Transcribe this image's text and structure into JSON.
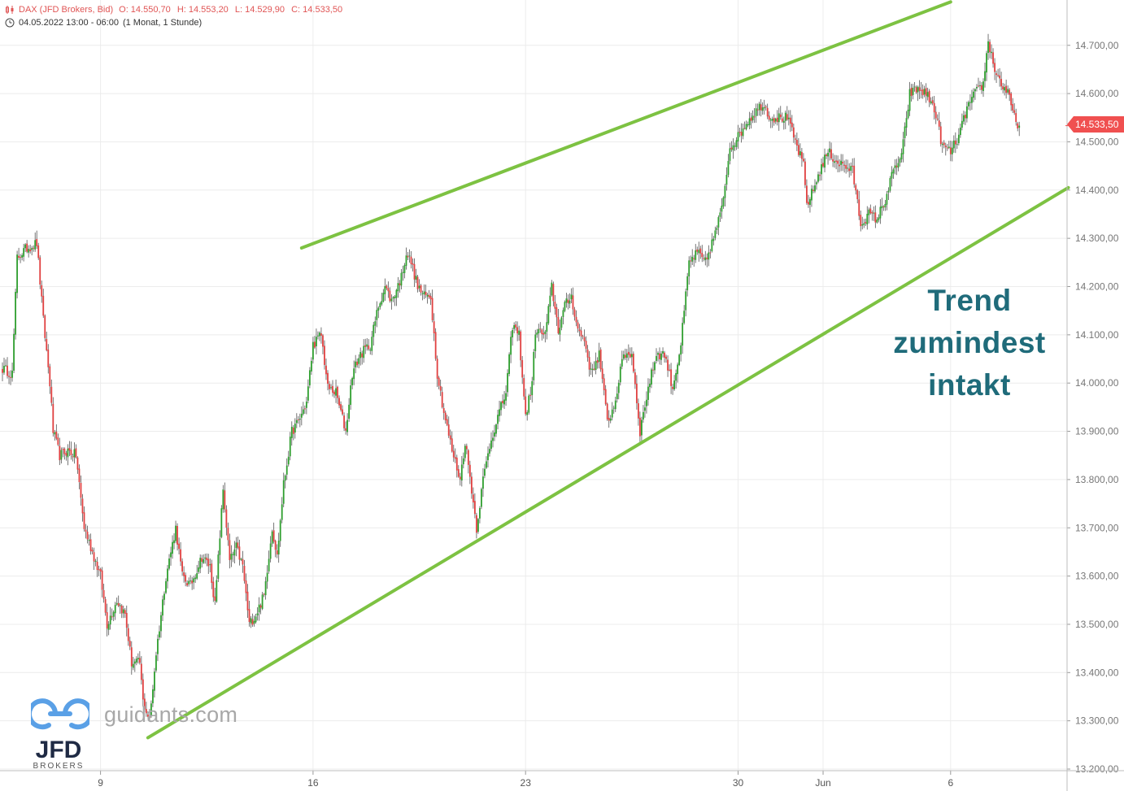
{
  "header": {
    "instrument": "DAX (JFD Brokers, Bid)",
    "open": "O: 14.550,70",
    "high": "H: 14.553,20",
    "low": "L: 14.529,90",
    "close": "C: 14.533,50",
    "range": "04.05.2022 13:00 - 06:00",
    "period": "(1 Monat, 1 Stunde)"
  },
  "annotation": {
    "line1": "Trend",
    "line2": "zumindest",
    "line3": "intakt"
  },
  "last_price_label": "14.533,50",
  "watermark": {
    "site": "guidants.com",
    "logo": "JFD",
    "logo_sub": "BROKERS"
  },
  "colors": {
    "up": "#2e9e2e",
    "down": "#e04040",
    "trend": "#7dc242",
    "annotation": "#1f6b7a",
    "badge": "#f05050"
  },
  "chart_data": {
    "type": "candlestick",
    "title": "DAX (JFD Brokers, Bid)",
    "ylim": [
      13180,
      14790
    ],
    "yticks": [
      13200,
      13300,
      13400,
      13500,
      13600,
      13700,
      13800,
      13900,
      14000,
      14100,
      14200,
      14300,
      14400,
      14500,
      14600,
      14700
    ],
    "ytick_labels": [
      "13.200,00",
      "13.300,00",
      "13.400,00",
      "13.500,00",
      "13.600,00",
      "13.700,00",
      "13.800,00",
      "13.900,00",
      "14.000,00",
      "14.100,00",
      "14.200,00",
      "14.300,00",
      "14.400,00",
      "14.500,00",
      "14.600,00",
      "14.700,00"
    ],
    "xticks": [
      {
        "label": "9",
        "index": 60
      },
      {
        "label": "16",
        "index": 190
      },
      {
        "label": "23",
        "index": 320
      },
      {
        "label": "30",
        "index": 450
      },
      {
        "label": "Jun",
        "index": 502
      },
      {
        "label": "6",
        "index": 580
      }
    ],
    "x_index_range": [
      -3,
      652
    ],
    "series_path": [
      [
        0,
        14030
      ],
      [
        6,
        14020
      ],
      [
        9,
        14260
      ],
      [
        15,
        14280
      ],
      [
        21,
        14290
      ],
      [
        25,
        14130
      ],
      [
        29,
        14000
      ],
      [
        31,
        13900
      ],
      [
        35,
        13850
      ],
      [
        40,
        13860
      ],
      [
        45,
        13850
      ],
      [
        50,
        13700
      ],
      [
        55,
        13650
      ],
      [
        60,
        13600
      ],
      [
        64,
        13500
      ],
      [
        70,
        13550
      ],
      [
        75,
        13520
      ],
      [
        79,
        13420
      ],
      [
        84,
        13420
      ],
      [
        86,
        13340
      ],
      [
        90,
        13300
      ],
      [
        94,
        13440
      ],
      [
        100,
        13600
      ],
      [
        106,
        13700
      ],
      [
        110,
        13600
      ],
      [
        115,
        13580
      ],
      [
        122,
        13640
      ],
      [
        127,
        13620
      ],
      [
        130,
        13540
      ],
      [
        135,
        13780
      ],
      [
        139,
        13630
      ],
      [
        143,
        13660
      ],
      [
        147,
        13620
      ],
      [
        151,
        13500
      ],
      [
        155,
        13520
      ],
      [
        160,
        13560
      ],
      [
        165,
        13700
      ],
      [
        168,
        13640
      ],
      [
        172,
        13790
      ],
      [
        177,
        13900
      ],
      [
        181,
        13920
      ],
      [
        186,
        13960
      ],
      [
        190,
        14080
      ],
      [
        195,
        14100
      ],
      [
        199,
        13990
      ],
      [
        204,
        13980
      ],
      [
        210,
        13900
      ],
      [
        214,
        14020
      ],
      [
        219,
        14060
      ],
      [
        225,
        14080
      ],
      [
        230,
        14160
      ],
      [
        234,
        14200
      ],
      [
        238,
        14170
      ],
      [
        244,
        14220
      ],
      [
        247,
        14270
      ],
      [
        250,
        14250
      ],
      [
        254,
        14200
      ],
      [
        258,
        14180
      ],
      [
        262,
        14180
      ],
      [
        266,
        14020
      ],
      [
        270,
        13940
      ],
      [
        275,
        13860
      ],
      [
        280,
        13800
      ],
      [
        283,
        13880
      ],
      [
        287,
        13780
      ],
      [
        290,
        13700
      ],
      [
        294,
        13800
      ],
      [
        298,
        13870
      ],
      [
        302,
        13920
      ],
      [
        308,
        13980
      ],
      [
        312,
        14120
      ],
      [
        316,
        14100
      ],
      [
        320,
        13930
      ],
      [
        324,
        14000
      ],
      [
        326,
        14110
      ],
      [
        332,
        14100
      ],
      [
        336,
        14200
      ],
      [
        340,
        14110
      ],
      [
        344,
        14160
      ],
      [
        348,
        14180
      ],
      [
        352,
        14110
      ],
      [
        356,
        14090
      ],
      [
        360,
        14020
      ],
      [
        365,
        14060
      ],
      [
        370,
        13920
      ],
      [
        374,
        13950
      ],
      [
        380,
        14060
      ],
      [
        385,
        14060
      ],
      [
        390,
        13900
      ],
      [
        395,
        13990
      ],
      [
        400,
        14060
      ],
      [
        405,
        14060
      ],
      [
        410,
        13990
      ],
      [
        415,
        14080
      ],
      [
        420,
        14250
      ],
      [
        425,
        14270
      ],
      [
        430,
        14250
      ],
      [
        435,
        14300
      ],
      [
        440,
        14360
      ],
      [
        445,
        14490
      ],
      [
        450,
        14510
      ],
      [
        455,
        14540
      ],
      [
        460,
        14560
      ],
      [
        465,
        14580
      ],
      [
        470,
        14550
      ],
      [
        475,
        14550
      ],
      [
        480,
        14550
      ],
      [
        485,
        14500
      ],
      [
        490,
        14450
      ],
      [
        492,
        14370
      ],
      [
        496,
        14400
      ],
      [
        500,
        14440
      ],
      [
        505,
        14480
      ],
      [
        510,
        14460
      ],
      [
        515,
        14450
      ],
      [
        520,
        14440
      ],
      [
        525,
        14330
      ],
      [
        530,
        14350
      ],
      [
        535,
        14340
      ],
      [
        540,
        14380
      ],
      [
        545,
        14440
      ],
      [
        550,
        14470
      ],
      [
        555,
        14600
      ],
      [
        560,
        14610
      ],
      [
        565,
        14600
      ],
      [
        570,
        14570
      ],
      [
        575,
        14490
      ],
      [
        580,
        14480
      ],
      [
        585,
        14510
      ],
      [
        590,
        14570
      ],
      [
        595,
        14600
      ],
      [
        600,
        14620
      ],
      [
        603,
        14710
      ],
      [
        607,
        14650
      ],
      [
        611,
        14620
      ],
      [
        615,
        14600
      ],
      [
        619,
        14550
      ],
      [
        622,
        14533
      ]
    ],
    "trend_lines": [
      {
        "name": "upper",
        "from": [
          183,
          14280
        ],
        "to": [
          580,
          14790
        ]
      },
      {
        "name": "lower",
        "from": [
          89,
          13265
        ],
        "to": [
          652,
          14405
        ]
      }
    ],
    "last_price": 14533.5,
    "ohlc_last": {
      "open": 14550.7,
      "high": 14553.2,
      "low": 14529.9,
      "close": 14533.5
    }
  }
}
